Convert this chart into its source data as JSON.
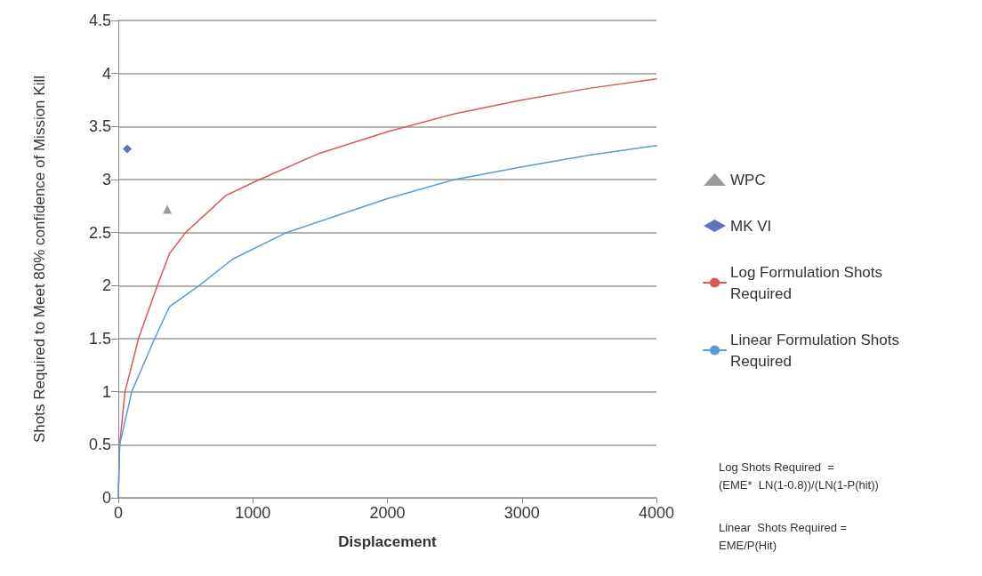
{
  "chart_data": {
    "type": "line",
    "xlabel": "Displacement",
    "ylabel": "Shots Required to Meet 80% confidence of Mission Kill",
    "xlim": [
      0,
      4000
    ],
    "xticks": [
      0,
      1000,
      2000,
      3000,
      4000
    ],
    "ylim": [
      0,
      4.5
    ],
    "yticks": [
      0,
      0.5,
      1,
      1.5,
      2,
      2.5,
      3,
      3.5,
      4,
      4.5
    ],
    "grid": "y",
    "legend": "right",
    "series": [
      {
        "name": "WPC",
        "type": "scatter",
        "marker": "triangle",
        "color": "#7f7f7f",
        "x": [
          364
        ],
        "values": [
          2.72
        ]
      },
      {
        "name": "MK VI",
        "type": "scatter",
        "marker": "diamond",
        "color": "#3a4fb0",
        "x": [
          66
        ],
        "values": [
          3.29
        ]
      },
      {
        "name": "Log Formulation Shots Required",
        "marker": "none",
        "color": "#d9595a",
        "x": [
          0,
          10,
          50,
          150,
          290,
          380,
          500,
          800,
          1050,
          1500,
          2000,
          2500,
          3000,
          3500,
          4000
        ],
        "values": [
          0,
          0.5,
          1.0,
          1.5,
          2.0,
          2.3,
          2.5,
          2.85,
          3.0,
          3.25,
          3.45,
          3.62,
          3.75,
          3.86,
          3.95
        ]
      },
      {
        "name": "Linear Formulation Shots Required",
        "marker": "none",
        "color": "#5b9bd5",
        "x": [
          0,
          10,
          100,
          270,
          380,
          600,
          850,
          1250,
          2000,
          2500,
          3000,
          3500,
          4000
        ],
        "values": [
          0,
          0.5,
          1.0,
          1.5,
          1.8,
          2.0,
          2.25,
          2.5,
          2.82,
          3.0,
          3.12,
          3.23,
          3.32
        ]
      }
    ],
    "annotations": [
      "Log Shots Required  =\n(EME*  LN(1-0.8))/(LN(1-P(hit))",
      "Linear  Shots Required =\nEME/P(Hit)"
    ]
  }
}
